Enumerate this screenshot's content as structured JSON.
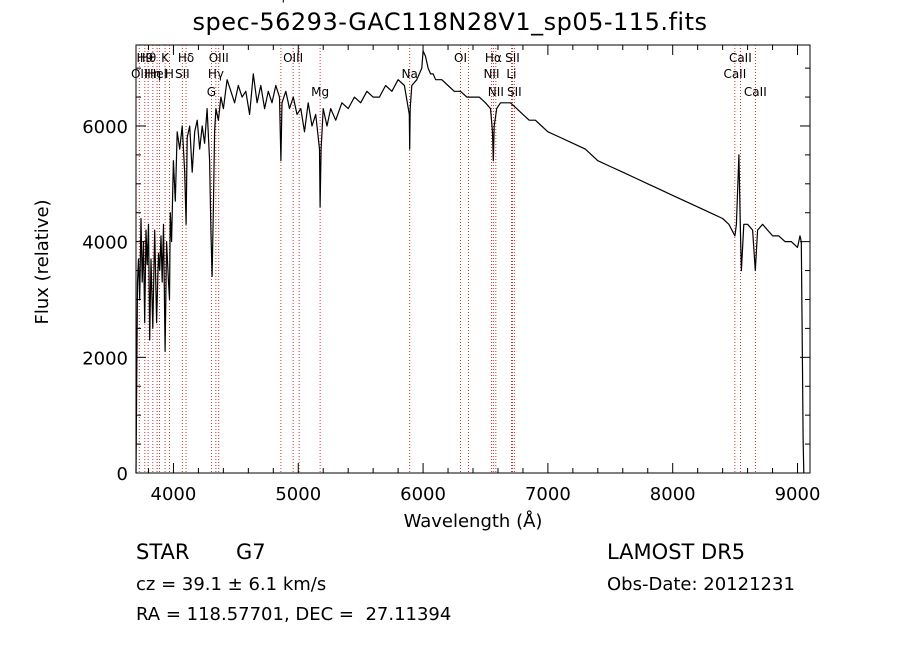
{
  "chart_data": {
    "type": "line",
    "title": "spec-56293-GAC118N28V1_sp05-115.fits",
    "xlabel": "Wavelength (Å)",
    "ylabel": "Flux (relative)",
    "xlim": [
      3700,
      9100
    ],
    "ylim": [
      0,
      7400
    ],
    "x_ticks": [
      4000,
      5000,
      6000,
      7000,
      8000,
      9000
    ],
    "y_ticks": [
      0,
      2000,
      4000,
      6000
    ],
    "grid": false,
    "series": [
      {
        "x": [
          3700,
          3705,
          3712,
          3720,
          3730,
          3740,
          3750,
          3760,
          3770,
          3780,
          3790,
          3800,
          3810,
          3820,
          3835,
          3850,
          3865,
          3880,
          3890,
          3900,
          3910,
          3920,
          3933,
          3945,
          3960,
          3968,
          3975,
          3985,
          4000,
          4015,
          4030,
          4050,
          4070,
          4090,
          4101,
          4110,
          4130,
          4150,
          4170,
          4190,
          4210,
          4230,
          4250,
          4270,
          4290,
          4300,
          4310,
          4320,
          4330,
          4340,
          4360,
          4380,
          4400,
          4430,
          4460,
          4490,
          4520,
          4550,
          4580,
          4610,
          4640,
          4670,
          4700,
          4730,
          4760,
          4790,
          4820,
          4850,
          4861,
          4870,
          4900,
          4930,
          4960,
          4990,
          5020,
          5050,
          5080,
          5110,
          5140,
          5170,
          5175,
          5183,
          5190,
          5200,
          5230,
          5260,
          5300,
          5350,
          5400,
          5450,
          5500,
          5550,
          5600,
          5650,
          5700,
          5750,
          5800,
          5850,
          5890,
          5893,
          5897,
          5910,
          5950,
          5990,
          6000,
          6020,
          6040,
          6060,
          6080,
          6100,
          6150,
          6200,
          6250,
          6300,
          6350,
          6400,
          6450,
          6500,
          6540,
          6556,
          6563,
          6570,
          6590,
          6620,
          6650,
          6700,
          6750,
          6800,
          6850,
          6900,
          6950,
          7000,
          7100,
          7200,
          7300,
          7400,
          7500,
          7600,
          7700,
          7800,
          7900,
          8000,
          8100,
          8200,
          8300,
          8400,
          8450,
          8498,
          8510,
          8530,
          8542,
          8550,
          8570,
          8600,
          8640,
          8662,
          8680,
          8720,
          8760,
          8800,
          8850,
          8900,
          8950,
          9000,
          9020,
          9030,
          9040,
          9045,
          9050
        ],
        "y": [
          0,
          1300,
          3300,
          3700,
          3000,
          4400,
          3300,
          4000,
          2600,
          4200,
          3600,
          4300,
          2300,
          3700,
          2500,
          4200,
          2600,
          3800,
          3500,
          4100,
          3300,
          4300,
          2100,
          4000,
          3300,
          3000,
          4500,
          4000,
          5400,
          4700,
          5900,
          5600,
          6000,
          5200,
          4300,
          5800,
          6000,
          5200,
          5900,
          6100,
          5600,
          6000,
          5700,
          6300,
          5400,
          4200,
          3400,
          4600,
          5900,
          6300,
          6100,
          6500,
          6300,
          6800,
          6600,
          6400,
          6700,
          6500,
          6600,
          6200,
          6900,
          6400,
          6700,
          6300,
          6600,
          6400,
          6700,
          6500,
          5400,
          6400,
          6600,
          6300,
          6500,
          6200,
          6300,
          5900,
          6400,
          6000,
          6200,
          5600,
          4600,
          5600,
          5900,
          6300,
          6000,
          6300,
          6100,
          6400,
          6300,
          6500,
          6400,
          6600,
          6500,
          6500,
          6700,
          6600,
          6800,
          6700,
          6200,
          5600,
          6300,
          6700,
          6800,
          7000,
          7300,
          7200,
          7000,
          6900,
          6900,
          6800,
          6800,
          6700,
          6600,
          6600,
          6500,
          6500,
          6500,
          6400,
          6300,
          5900,
          5400,
          6000,
          6300,
          6400,
          6400,
          6400,
          6300,
          6200,
          6100,
          6100,
          6000,
          5900,
          5800,
          5700,
          5600,
          5400,
          5300,
          5200,
          5100,
          5000,
          4900,
          4800,
          4700,
          4600,
          4500,
          4400,
          4300,
          4100,
          4300,
          5500,
          4200,
          3500,
          4300,
          4300,
          4200,
          3500,
          4200,
          4300,
          4200,
          4100,
          4100,
          4000,
          4000,
          3900,
          4100,
          4000,
          1800,
          600,
          0
        ]
      }
    ],
    "lines": [
      {
        "x": 3726,
        "label": "OII",
        "row": 2
      },
      {
        "x": 3771,
        "label": "H9",
        "row": 1
      },
      {
        "x": 3797,
        "label": "Hθ",
        "row": 1
      },
      {
        "x": 3835,
        "label": "Hη",
        "row": 2
      },
      {
        "x": 3869,
        "label": "Hel",
        "row": 2
      },
      {
        "x": 3889,
        "label": "",
        "row": 0
      },
      {
        "x": 3933,
        "label": "K",
        "row": 1
      },
      {
        "x": 3968,
        "label": "H",
        "row": 2
      },
      {
        "x": 4071,
        "label": "SII",
        "row": 2
      },
      {
        "x": 4101,
        "label": "Hδ",
        "row": 1
      },
      {
        "x": 4304,
        "label": "G",
        "row": 3
      },
      {
        "x": 4340,
        "label": "Hγ",
        "row": 2
      },
      {
        "x": 4363,
        "label": "OIII",
        "row": 1
      },
      {
        "x": 4861,
        "label": "Hβ",
        "row": 0
      },
      {
        "x": 4959,
        "label": "OIII",
        "row": 1
      },
      {
        "x": 5007,
        "label": "",
        "row": 0
      },
      {
        "x": 5175,
        "label": "Mg",
        "row": 3
      },
      {
        "x": 5893,
        "label": "Na",
        "row": 2
      },
      {
        "x": 6300,
        "label": "OI",
        "row": 1
      },
      {
        "x": 6364,
        "label": "",
        "row": 0
      },
      {
        "x": 6548,
        "label": "NII",
        "row": 2
      },
      {
        "x": 6563,
        "label": "Hα",
        "row": 1
      },
      {
        "x": 6583,
        "label": "NII",
        "row": 3
      },
      {
        "x": 6708,
        "label": "Li",
        "row": 2
      },
      {
        "x": 6716,
        "label": "SII",
        "row": 1
      },
      {
        "x": 6731,
        "label": "SII",
        "row": 3
      },
      {
        "x": 8498,
        "label": "CaII",
        "row": 2
      },
      {
        "x": 8542,
        "label": "CaII",
        "row": 1
      },
      {
        "x": 8662,
        "label": "CaII",
        "row": 3
      }
    ]
  },
  "info": {
    "object_class": "STAR",
    "subclass": "G7",
    "survey": "LAMOST DR5",
    "redshift": "cz = 39.1 ± 6.1 km/s",
    "obs_date": "Obs-Date: 20121231",
    "coordinates": "RA = 118.57701, DEC =  27.11394"
  }
}
